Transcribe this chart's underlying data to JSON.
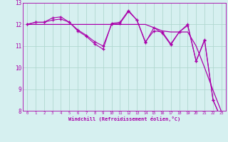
{
  "xlabel": "Windchill (Refroidissement éolien,°C)",
  "background_color": "#d6f0f0",
  "line_color": "#aa00aa",
  "grid_color": "#b0d8d0",
  "x_hours": [
    0,
    1,
    2,
    3,
    4,
    5,
    6,
    7,
    8,
    9,
    10,
    11,
    12,
    13,
    14,
    15,
    16,
    17,
    18,
    19,
    20,
    21,
    22,
    23
  ],
  "s_jagged": [
    12.0,
    12.1,
    12.1,
    12.3,
    12.35,
    12.1,
    11.7,
    11.45,
    11.1,
    10.85,
    12.05,
    12.1,
    12.65,
    12.2,
    11.15,
    11.85,
    11.6,
    11.05,
    11.65,
    12.0,
    10.3,
    11.3,
    8.5,
    7.6
  ],
  "s_mid": [
    12.0,
    12.1,
    12.1,
    12.2,
    12.25,
    12.1,
    11.75,
    11.5,
    11.2,
    11.0,
    12.0,
    12.05,
    12.6,
    12.2,
    11.2,
    11.7,
    11.65,
    11.1,
    11.65,
    11.95,
    10.3,
    11.25,
    8.5,
    7.6
  ],
  "s_smooth": [
    12.0,
    12.0,
    12.0,
    12.0,
    12.0,
    12.0,
    12.0,
    12.0,
    12.0,
    12.0,
    12.0,
    12.0,
    12.0,
    12.0,
    12.0,
    11.85,
    11.7,
    11.65,
    11.65,
    11.65,
    11.0,
    10.0,
    8.95,
    7.95
  ],
  "ylim": [
    8,
    13
  ],
  "yticks": [
    8,
    9,
    10,
    11,
    12,
    13
  ],
  "xlim": [
    -0.5,
    23.5
  ]
}
